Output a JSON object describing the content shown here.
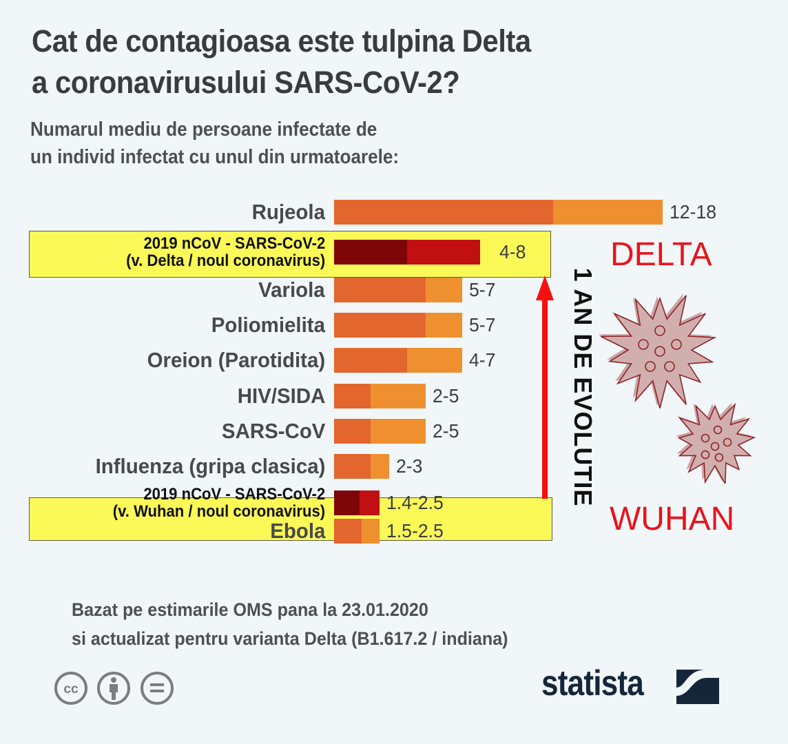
{
  "header": {
    "title_line1": "Cat de contagioasa este tulpina Delta",
    "title_line2": "a coronavirusului SARS-CoV-2?",
    "subtitle_line1": "Numarul mediu de persoane infectate de",
    "subtitle_line2": "un individ infectat cu unul din urmatoarele:"
  },
  "annotations": {
    "delta": "DELTA",
    "wuhan": "WUHAN",
    "evolution": "1 AN DE EVOLUTIE"
  },
  "footer": {
    "source_line1": "Bazat pe estimarile OMS pana la 23.01.2020",
    "source_line2": "si actualizat pentru varianta Delta (B1.617.2 / indiana)",
    "brand": "statista",
    "license_icons": [
      "cc-icon",
      "by-attribution-icon",
      "no-derivatives-icon"
    ]
  },
  "colors": {
    "low": "#e2662e",
    "high": "#ee902f",
    "hl_low": "#7e0608",
    "hl_high": "#c10f12",
    "highlight_bg": "#fbf958",
    "accent_red": "#e8141b",
    "brand": "#16263a"
  },
  "chart_data": {
    "type": "bar",
    "orientation": "horizontal",
    "stacked_range": true,
    "title": "Cat de contagioasa este tulpina Delta a coronavirusului SARS-CoV-2?",
    "xlabel": "",
    "ylabel": "",
    "xlim": [
      0,
      18
    ],
    "grid": false,
    "categories": [
      {
        "label": "Rujeola",
        "label2": "",
        "low": 12,
        "high": 18,
        "text": "12-18",
        "highlight": false
      },
      {
        "label": "2019 nCoV - SARS-CoV-2",
        "label2": "(v. Delta / noul coronavirus)",
        "low": 4,
        "high": 8,
        "text": "4-8",
        "highlight": true
      },
      {
        "label": "Variola",
        "label2": "",
        "low": 5,
        "high": 7,
        "text": "5-7",
        "highlight": false
      },
      {
        "label": "Poliomielita",
        "label2": "",
        "low": 5,
        "high": 7,
        "text": "5-7",
        "highlight": false
      },
      {
        "label": "Oreion (Parotidita)",
        "label2": "",
        "low": 4,
        "high": 7,
        "text": "4-7",
        "highlight": false
      },
      {
        "label": "HIV/SIDA",
        "label2": "",
        "low": 2,
        "high": 5,
        "text": "2-5",
        "highlight": false
      },
      {
        "label": "SARS-CoV",
        "label2": "",
        "low": 2,
        "high": 5,
        "text": "2-5",
        "highlight": false
      },
      {
        "label": "Influenza (gripa clasica)",
        "label2": "",
        "low": 2,
        "high": 3,
        "text": "2-3",
        "highlight": false
      },
      {
        "label": "2019 nCoV - SARS-CoV-2",
        "label2": "(v. Wuhan / noul coronavirus)",
        "low": 1.4,
        "high": 2.5,
        "text": "1.4-2.5",
        "highlight": true
      },
      {
        "label": "Ebola",
        "label2": "",
        "low": 1.5,
        "high": 2.5,
        "text": "1.5-2.5",
        "highlight": false
      }
    ]
  }
}
